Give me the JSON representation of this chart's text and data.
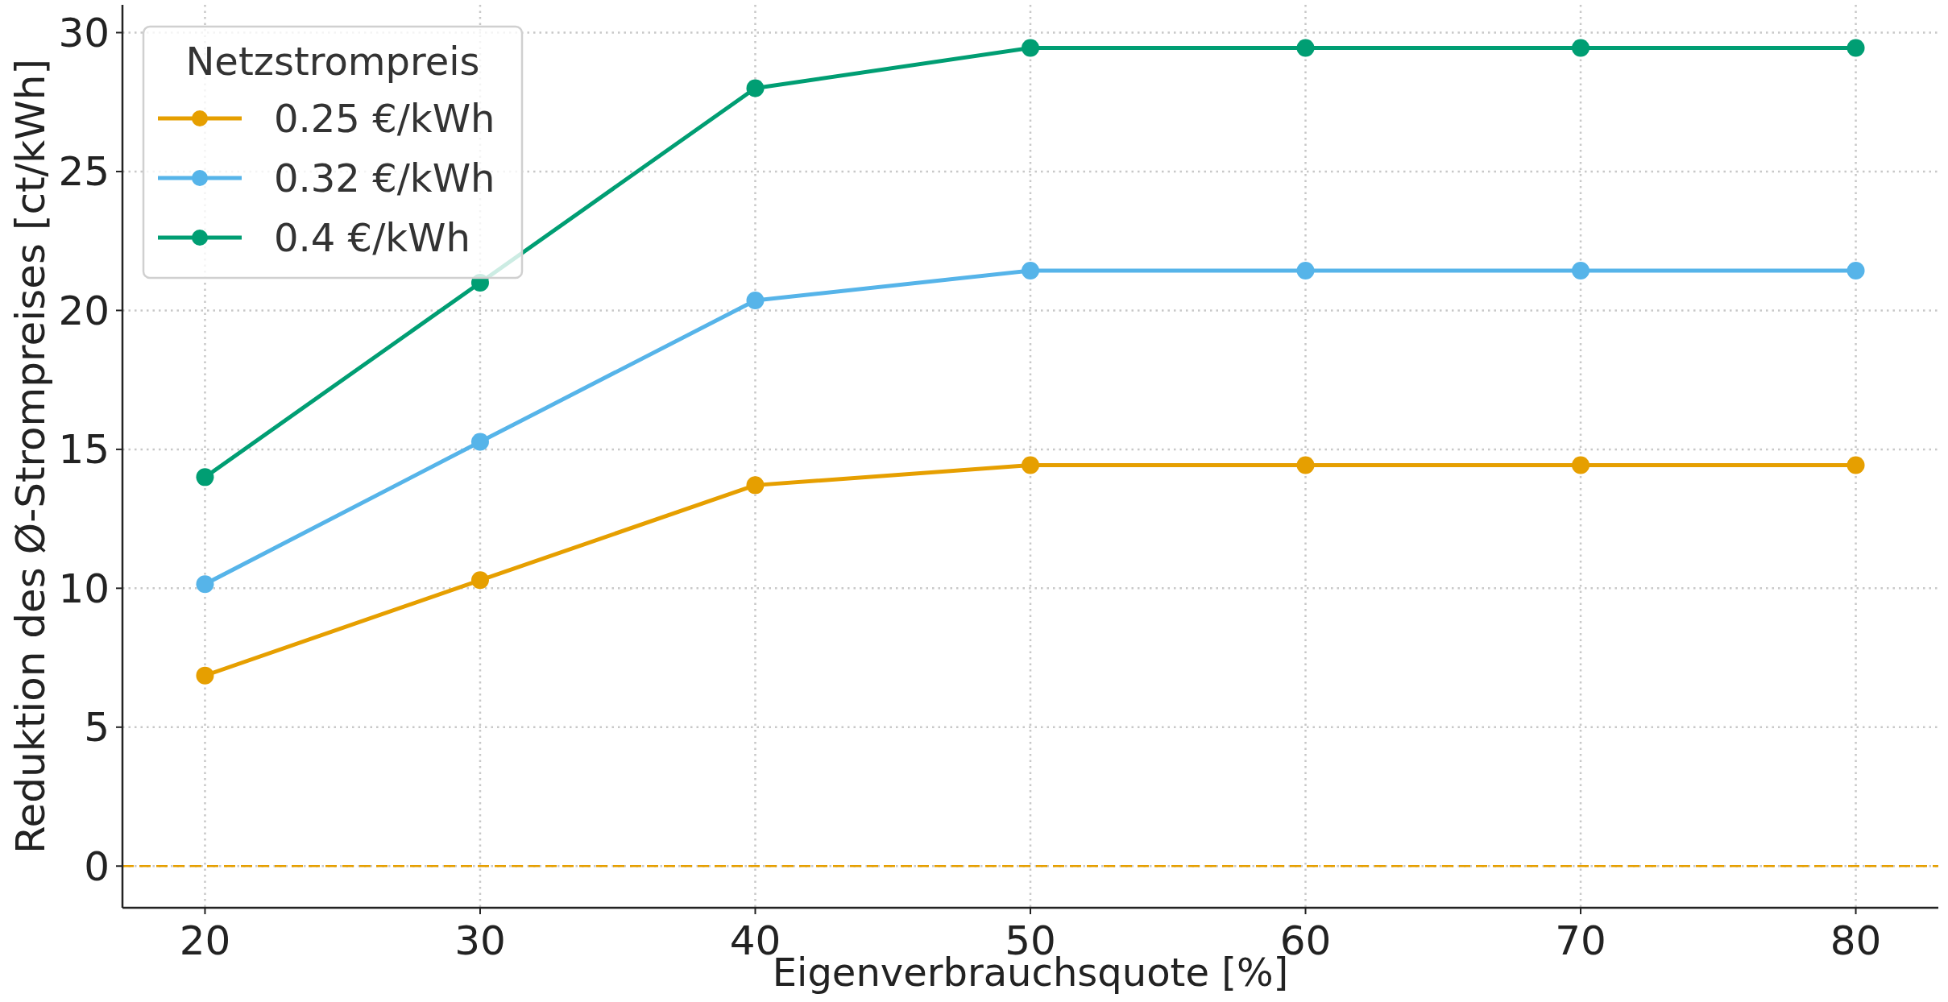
{
  "chart_data": {
    "type": "line",
    "xlabel": "Eigenverbrauchsquote [%]",
    "ylabel": "Reduktion des Ø-Strompreises [ct/kWh]",
    "legend_title": "Netzstrompreis",
    "x": [
      20,
      30,
      40,
      50,
      60,
      70,
      80
    ],
    "series": [
      {
        "name": "0.25 €/kWh",
        "color": "#e69f00",
        "values": [
          6.86,
          10.29,
          13.71,
          14.43,
          14.43,
          14.43,
          14.43
        ]
      },
      {
        "name": "0.32 €/kWh",
        "color": "#56b4e9",
        "values": [
          10.15,
          15.27,
          20.36,
          21.43,
          21.43,
          21.43,
          21.43
        ]
      },
      {
        "name": "0.4 €/kWh",
        "color": "#009e73",
        "values": [
          14,
          21,
          28,
          29.45,
          29.45,
          29.45,
          29.45
        ]
      }
    ],
    "xlim": [
      17,
      83
    ],
    "xticks": [
      20,
      30,
      40,
      50,
      60,
      70,
      80
    ],
    "ylim": [
      -1.5,
      31
    ],
    "yticks": [
      0,
      5,
      10,
      15,
      20,
      25,
      30
    ],
    "ref_lines": [
      {
        "axis": "y",
        "value": 0,
        "color": "#e69f00",
        "line_style": "dashed"
      }
    ],
    "grid": true,
    "legend": "top left",
    "marker": "circle",
    "line_style": "solid"
  }
}
